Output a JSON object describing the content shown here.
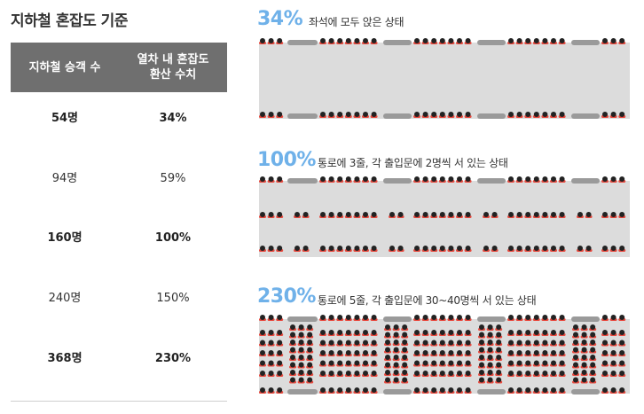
{
  "title": "지하철 혼잡도 기준",
  "table": {
    "headers": [
      "지하철 승객 수",
      "열차 내 혼잡도\n환산 수치"
    ],
    "rows": [
      {
        "passengers": "54명",
        "congestion": "34%",
        "bold": true
      },
      {
        "passengers": "94명",
        "congestion": "59%",
        "bold": false
      },
      {
        "passengers": "160명",
        "congestion": "100%",
        "bold": true
      },
      {
        "passengers": "240명",
        "congestion": "150%",
        "bold": false
      },
      {
        "passengers": "368명",
        "congestion": "230%",
        "bold": true
      }
    ]
  },
  "panels": [
    {
      "percent": "34%",
      "description": "좌석에 모두 앉은 상태"
    },
    {
      "percent": "100%",
      "description": "통로에 3줄, 각 출입문에 2명씩 서 있는 상태"
    },
    {
      "percent": "230%",
      "description": "통로에 5줄, 각 출입문에 30~40명씩 서 있는 상태"
    }
  ],
  "colors": {
    "percent_blue": "#6fb1e9",
    "header_gray": "#6f6f6f",
    "car_floor": "#dcdcdc",
    "door": "#9a9a9a",
    "person_head": "#222222",
    "person_body": "#e8493e"
  }
}
